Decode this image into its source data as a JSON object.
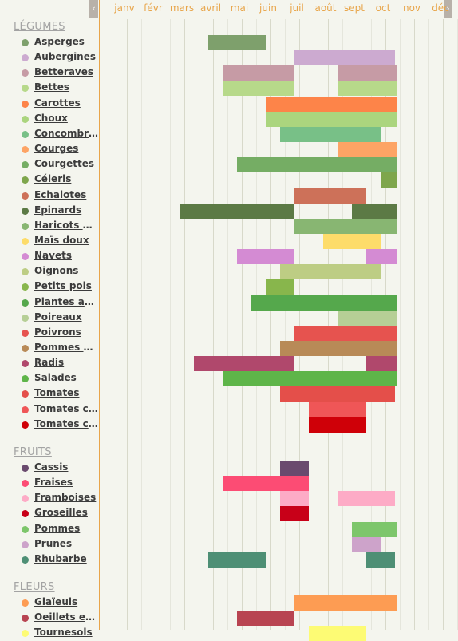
{
  "calendar": {
    "months": [
      "janv",
      "févr",
      "mars",
      "avril",
      "mai",
      "juin",
      "juil",
      "août",
      "sept",
      "oct",
      "nov",
      "déc"
    ],
    "scroll_left": "‹",
    "scroll_right": "›"
  },
  "sections": [
    {
      "title": "LÉGUMES",
      "items": [
        {
          "label": "Asperges",
          "color": "#7ea06c",
          "periods": [
            [
              4.0,
              6.0
            ]
          ]
        },
        {
          "label": "Aubergines",
          "color": "#ccaad0",
          "periods": [
            [
              7.0,
              10.5
            ]
          ]
        },
        {
          "label": "Betteraves",
          "color": "#c69ba5",
          "periods": [
            [
              4.5,
              7.0
            ],
            [
              8.5,
              11.0
            ]
          ]
        },
        {
          "label": "Bettes",
          "color": "#b7d98a",
          "periods": [
            [
              4.5,
              7.0
            ],
            [
              8.5,
              11.0
            ]
          ]
        },
        {
          "label": "Carottes",
          "color": "#fd8449",
          "periods": [
            [
              6.0,
              11.5
            ]
          ]
        },
        {
          "label": "Choux",
          "color": "#abd57e",
          "periods": [
            [
              6.0,
              11.0
            ]
          ]
        },
        {
          "label": "Concombres",
          "color": "#78c087",
          "periods": [
            [
              6.5,
              10.0
            ]
          ]
        },
        {
          "label": "Courges",
          "color": "#fda465",
          "periods": [
            [
              8.5,
              11.5
            ]
          ]
        },
        {
          "label": "Courgettes",
          "color": "#75ad64",
          "periods": [
            [
              5.0,
              11.5
            ]
          ]
        },
        {
          "label": "Céleris",
          "color": "#7ea64c",
          "periods": [
            [
              10.0,
              11.0
            ]
          ]
        },
        {
          "label": "Echalotes",
          "color": "#cd7159",
          "periods": [
            [
              7.0,
              9.5
            ]
          ]
        },
        {
          "label": "Epinards",
          "color": "#5c7a45",
          "periods": [
            [
              3.0,
              7.0
            ],
            [
              9.0,
              11.5
            ]
          ]
        },
        {
          "label": "Haricots verts",
          "color": "#88b672",
          "periods": [
            [
              7.0,
              11.0
            ]
          ]
        },
        {
          "label": "Maïs doux",
          "color": "#fddc6a",
          "periods": [
            [
              8.0,
              10.0
            ]
          ]
        },
        {
          "label": "Navets",
          "color": "#d48bd3",
          "periods": [
            [
              5.0,
              7.0
            ],
            [
              9.5,
              11.5
            ]
          ]
        },
        {
          "label": "Oignons",
          "color": "#bdcd84",
          "periods": [
            [
              6.5,
              10.0
            ]
          ]
        },
        {
          "label": "Petits pois",
          "color": "#88b64c",
          "periods": [
            [
              6.0,
              7.0
            ]
          ]
        },
        {
          "label": "Plantes aromatiques",
          "color": "#55a84c",
          "periods": [
            [
              5.5,
              11.5
            ]
          ]
        },
        {
          "label": "Poireaux",
          "color": "#b6cf96",
          "periods": [
            [
              8.5,
              11.5
            ]
          ]
        },
        {
          "label": "Poivrons",
          "color": "#e6534f",
          "periods": [
            [
              7.0,
              11.0
            ]
          ]
        },
        {
          "label": "Pommes de terre",
          "color": "#b88a57",
          "periods": [
            [
              6.5,
              11.5
            ]
          ]
        },
        {
          "label": "Radis",
          "color": "#b0486c",
          "periods": [
            [
              3.5,
              7.0
            ],
            [
              9.5,
              11.5
            ]
          ]
        },
        {
          "label": "Salades",
          "color": "#5eb549",
          "periods": [
            [
              4.5,
              11.5
            ]
          ]
        },
        {
          "label": "Tomates",
          "color": "#e44f4a",
          "periods": [
            [
              6.5,
              10.5
            ]
          ]
        },
        {
          "label": "Tomates cerises",
          "color": "#ef5657",
          "periods": [
            [
              7.5,
              9.5
            ]
          ]
        },
        {
          "label": "Tomates cœur de bœuf",
          "color": "#cf0008",
          "periods": [
            [
              7.5,
              9.5
            ]
          ]
        }
      ]
    },
    {
      "title": "FRUITS",
      "items": [
        {
          "label": "Cassis",
          "color": "#6a4a6e",
          "periods": [
            [
              6.5,
              7.5
            ]
          ]
        },
        {
          "label": "Fraises",
          "color": "#fc4c74",
          "periods": [
            [
              4.5,
              7.5
            ]
          ]
        },
        {
          "label": "Framboises",
          "color": "#fdabc6",
          "periods": [
            [
              6.5,
              7.5
            ],
            [
              8.5,
              10.5
            ]
          ]
        },
        {
          "label": "Groseilles",
          "color": "#c80018",
          "periods": [
            [
              6.5,
              7.5
            ]
          ]
        },
        {
          "label": "Pommes",
          "color": "#7dc66b",
          "periods": [
            [
              9.0,
              11.5
            ]
          ]
        },
        {
          "label": "Prunes",
          "color": "#cda3ca",
          "periods": [
            [
              9.0,
              10.0
            ]
          ]
        },
        {
          "label": "Rhubarbe",
          "color": "#4e8f75",
          "periods": [
            [
              4.0,
              6.0
            ],
            [
              9.5,
              10.5
            ]
          ]
        }
      ]
    },
    {
      "title": "FLEURS",
      "items": [
        {
          "label": "Glaïeuls",
          "color": "#fd9c53",
          "periods": [
            [
              7.0,
              11.0
            ]
          ]
        },
        {
          "label": "Oeillets et roses",
          "color": "#b84451",
          "periods": [
            [
              5.0,
              7.0
            ]
          ]
        },
        {
          "label": "Tournesols",
          "color": "#fdfb74",
          "periods": [
            [
              7.5,
              9.5
            ]
          ]
        }
      ]
    }
  ]
}
